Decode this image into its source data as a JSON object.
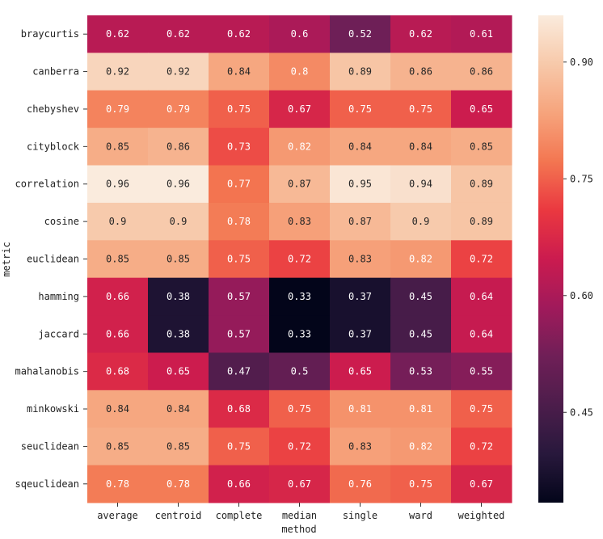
{
  "chart_data": {
    "type": "heatmap",
    "xlabel": "method",
    "ylabel": "metric",
    "x_categories": [
      "average",
      "centroid",
      "complete",
      "median",
      "single",
      "ward",
      "weighted"
    ],
    "y_categories": [
      "braycurtis",
      "canberra",
      "chebyshev",
      "cityblock",
      "correlation",
      "cosine",
      "euclidean",
      "hamming",
      "jaccard",
      "mahalanobis",
      "minkowski",
      "seuclidean",
      "sqeuclidean"
    ],
    "values": [
      [
        0.62,
        0.62,
        0.62,
        0.6,
        0.52,
        0.62,
        0.61
      ],
      [
        0.92,
        0.92,
        0.84,
        0.8,
        0.89,
        0.86,
        0.86
      ],
      [
        0.79,
        0.79,
        0.75,
        0.67,
        0.75,
        0.75,
        0.65
      ],
      [
        0.85,
        0.86,
        0.73,
        0.82,
        0.84,
        0.84,
        0.85
      ],
      [
        0.96,
        0.96,
        0.77,
        0.87,
        0.95,
        0.94,
        0.89
      ],
      [
        0.9,
        0.9,
        0.78,
        0.83,
        0.87,
        0.9,
        0.89
      ],
      [
        0.85,
        0.85,
        0.75,
        0.72,
        0.83,
        0.82,
        0.72
      ],
      [
        0.66,
        0.38,
        0.57,
        0.33,
        0.37,
        0.45,
        0.64
      ],
      [
        0.66,
        0.38,
        0.57,
        0.33,
        0.37,
        0.45,
        0.64
      ],
      [
        0.68,
        0.65,
        0.47,
        0.5,
        0.65,
        0.53,
        0.55
      ],
      [
        0.84,
        0.84,
        0.68,
        0.75,
        0.81,
        0.81,
        0.75
      ],
      [
        0.85,
        0.85,
        0.75,
        0.72,
        0.83,
        0.82,
        0.72
      ],
      [
        0.78,
        0.78,
        0.66,
        0.67,
        0.76,
        0.75,
        0.67
      ]
    ],
    "annotated": true,
    "colormap": "rocket",
    "colorbar": {
      "range": [
        0.334,
        0.96
      ],
      "ticks": [
        0.45,
        0.6,
        0.75,
        0.9
      ],
      "tick_labels": [
        "0.45",
        "0.60",
        "0.75",
        "0.90"
      ]
    }
  }
}
